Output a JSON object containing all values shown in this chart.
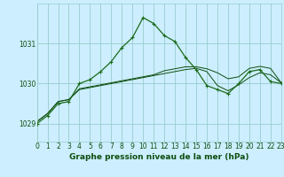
{
  "title": "Graphe pression niveau de la mer (hPa)",
  "background_color": "#cceeff",
  "grid_color": "#99cccc",
  "line_color": "#1a6b1a",
  "line_color_dark": "#0d4d0d",
  "ylim": [
    1028.55,
    1032.0
  ],
  "yticks": [
    1029,
    1030,
    1031
  ],
  "xlim": [
    0,
    23
  ],
  "xticks": [
    0,
    1,
    2,
    3,
    4,
    5,
    6,
    7,
    8,
    9,
    10,
    11,
    12,
    13,
    14,
    15,
    16,
    17,
    18,
    19,
    20,
    21,
    22,
    23
  ],
  "series1_x": [
    0,
    1,
    2,
    3,
    4,
    5,
    6,
    7,
    8,
    9,
    10,
    11,
    12,
    13,
    14,
    15,
    16,
    17,
    18,
    19,
    20,
    21,
    22,
    23
  ],
  "series1_y": [
    1029.0,
    1029.2,
    1029.5,
    1029.55,
    1030.0,
    1030.1,
    1030.3,
    1030.55,
    1030.9,
    1031.15,
    1031.65,
    1031.5,
    1031.2,
    1031.05,
    1030.65,
    1030.35,
    1029.95,
    1029.85,
    1029.75,
    1030.0,
    1030.3,
    1030.35,
    1030.05,
    1030.0
  ],
  "series2_x": [
    0,
    1,
    2,
    3,
    4,
    5,
    6,
    7,
    8,
    9,
    10,
    11,
    12,
    13,
    14,
    15,
    16,
    17,
    18,
    19,
    20,
    21,
    22,
    23
  ],
  "series2_y": [
    1029.05,
    1029.25,
    1029.55,
    1029.6,
    1029.85,
    1029.9,
    1029.95,
    1030.0,
    1030.05,
    1030.1,
    1030.15,
    1030.2,
    1030.25,
    1030.3,
    1030.35,
    1030.38,
    1030.3,
    1029.95,
    1029.82,
    1029.97,
    1030.15,
    1030.27,
    1030.22,
    1030.02
  ],
  "series3_x": [
    0,
    1,
    2,
    3,
    4,
    5,
    6,
    7,
    8,
    9,
    10,
    11,
    12,
    13,
    14,
    15,
    16,
    17,
    18,
    19,
    20,
    21,
    22,
    23
  ],
  "series3_y": [
    1029.05,
    1029.25,
    1029.55,
    1029.6,
    1029.87,
    1029.92,
    1029.97,
    1030.02,
    1030.07,
    1030.12,
    1030.17,
    1030.22,
    1030.32,
    1030.37,
    1030.42,
    1030.42,
    1030.37,
    1030.27,
    1030.12,
    1030.17,
    1030.38,
    1030.43,
    1030.38,
    1030.02
  ],
  "tick_fontsize": 5.5,
  "label_fontsize": 6.5
}
